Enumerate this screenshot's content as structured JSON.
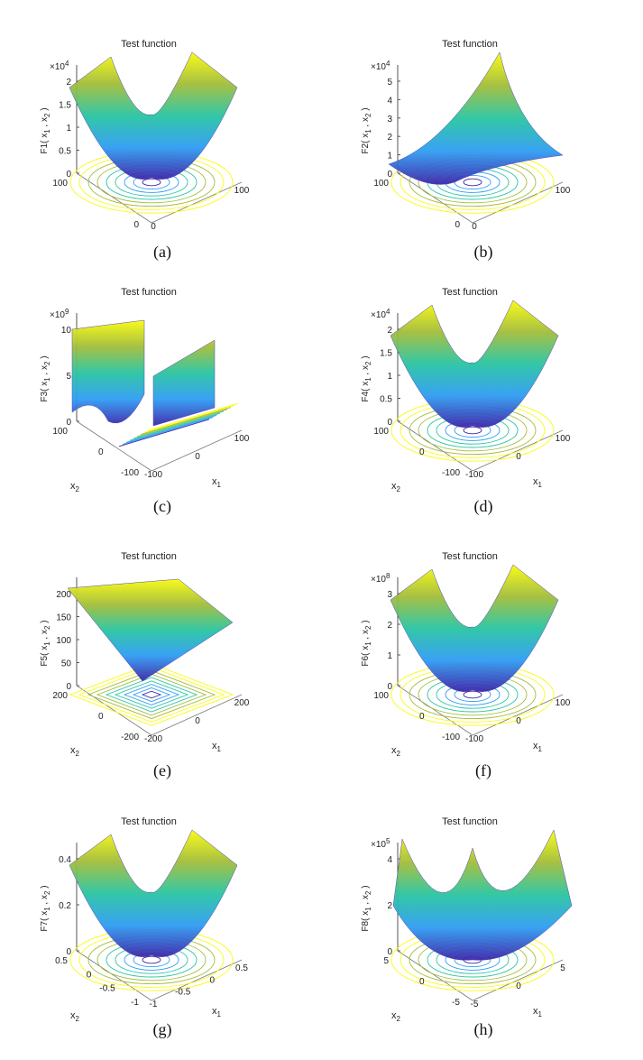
{
  "chart_data": [
    {
      "type": "surface",
      "caption": "(a)",
      "title": "Test function",
      "zlabel_main": "F1( x",
      "zlabel_s1": "1",
      "zlabel_mid": " , x",
      "zlabel_s2": "2",
      "zlabel_end": " )",
      "exp_base": "×10",
      "exp_pow": "4",
      "zticks": [
        "2",
        "1.5",
        "1",
        "0.5",
        "0"
      ],
      "zlim": [
        0,
        2
      ],
      "yticks": [
        "100",
        "0"
      ],
      "xticks": [
        "0",
        "100"
      ],
      "xlabel": "",
      "ylabel": "",
      "surface": "bowl",
      "colors": [
        "#3d26a8",
        "#2f9df4",
        "#29c5a2",
        "#a3bd3a",
        "#f9fb0e"
      ]
    },
    {
      "type": "surface",
      "caption": "(b)",
      "title": "Test function",
      "zlabel_main": "F2( x",
      "zlabel_s1": "1",
      "zlabel_mid": " , x",
      "zlabel_s2": "2",
      "zlabel_end": " )",
      "exp_base": "×10",
      "exp_pow": "4",
      "zticks": [
        "5",
        "4",
        "3",
        "2",
        "1",
        "0"
      ],
      "zlim": [
        0,
        5
      ],
      "yticks": [
        "100",
        "0"
      ],
      "xticks": [
        "0",
        "100"
      ],
      "xlabel": "",
      "ylabel": "",
      "surface": "tilted",
      "colors": [
        "#3d26a8",
        "#2f9df4",
        "#29c5a2",
        "#a3bd3a",
        "#f9fb0e"
      ]
    },
    {
      "type": "surface",
      "caption": "(c)",
      "title": "Test function",
      "zlabel_main": "F3( x",
      "zlabel_s1": "1",
      "zlabel_mid": " , x",
      "zlabel_s2": "2",
      "zlabel_end": " )",
      "exp_base": "×10",
      "exp_pow": "9",
      "zticks": [
        "10",
        "5",
        "0"
      ],
      "zlim": [
        0,
        10
      ],
      "yticks": [
        "100",
        "0",
        "-100"
      ],
      "xticks": [
        "-100",
        "0",
        "100"
      ],
      "xlabel": "x",
      "ylabel": "x",
      "surface": "valley",
      "colors": [
        "#3d26a8",
        "#2f9df4",
        "#29c5a2",
        "#a3bd3a",
        "#f9fb0e"
      ]
    },
    {
      "type": "surface",
      "caption": "(d)",
      "title": "Test function",
      "zlabel_main": "F4( x",
      "zlabel_s1": "1",
      "zlabel_mid": " , x",
      "zlabel_s2": "2",
      "zlabel_end": " )",
      "exp_base": "×10",
      "exp_pow": "4",
      "zticks": [
        "2",
        "1.5",
        "1",
        "0.5",
        "0"
      ],
      "zlim": [
        0,
        2
      ],
      "yticks": [
        "100",
        "0",
        "-100"
      ],
      "xticks": [
        "-100",
        "0",
        "100"
      ],
      "xlabel": "x",
      "ylabel": "x",
      "surface": "bowl",
      "colors": [
        "#3d26a8",
        "#2f9df4",
        "#29c5a2",
        "#a3bd3a",
        "#f9fb0e"
      ]
    },
    {
      "type": "surface",
      "caption": "(e)",
      "title": "Test function",
      "zlabel_main": "F5( x",
      "zlabel_s1": "1",
      "zlabel_mid": " , x",
      "zlabel_s2": "2",
      "zlabel_end": " )",
      "exp_base": "",
      "exp_pow": "",
      "zticks": [
        "200",
        "150",
        "100",
        "50",
        "0"
      ],
      "zlim": [
        0,
        200
      ],
      "yticks": [
        "200",
        "0",
        "-200"
      ],
      "xticks": [
        "-200",
        "0",
        "200"
      ],
      "xlabel": "x",
      "ylabel": "x",
      "surface": "pyramid",
      "colors": [
        "#3d26a8",
        "#2f9df4",
        "#29c5a2",
        "#a3bd3a",
        "#f9fb0e"
      ]
    },
    {
      "type": "surface",
      "caption": "(f)",
      "title": "Test function",
      "zlabel_main": "F6( x",
      "zlabel_s1": "1",
      "zlabel_mid": " , x",
      "zlabel_s2": "2",
      "zlabel_end": " )",
      "exp_base": "×10",
      "exp_pow": "8",
      "zticks": [
        "3",
        "2",
        "1",
        "0"
      ],
      "zlim": [
        0,
        3
      ],
      "yticks": [
        "100",
        "0",
        "-100"
      ],
      "xticks": [
        "-100",
        "0",
        "100"
      ],
      "xlabel": "x",
      "ylabel": "x",
      "surface": "bowl",
      "colors": [
        "#3d26a8",
        "#2f9df4",
        "#29c5a2",
        "#a3bd3a",
        "#f9fb0e"
      ]
    },
    {
      "type": "surface",
      "caption": "(g)",
      "title": "Test function",
      "zlabel_main": "F7( x",
      "zlabel_s1": "1",
      "zlabel_mid": " , x",
      "zlabel_s2": "2",
      "zlabel_end": " )",
      "exp_base": "",
      "exp_pow": "",
      "zticks": [
        "0.4",
        "0.2",
        "0"
      ],
      "zlim": [
        0,
        0.5
      ],
      "yticks": [
        "0.5",
        "0",
        "-0.5",
        "-1"
      ],
      "xticks": [
        "-1",
        "-0.5",
        "0",
        "0.5"
      ],
      "xlabel": "x",
      "ylabel": "x",
      "surface": "bowl",
      "colors": [
        "#3d26a8",
        "#2f9df4",
        "#29c5a2",
        "#a3bd3a",
        "#f9fb0e"
      ]
    },
    {
      "type": "surface",
      "caption": "(h)",
      "title": "Test function",
      "zlabel_main": "F8( x",
      "zlabel_s1": "1",
      "zlabel_mid": " , x",
      "zlabel_s2": "2",
      "zlabel_end": " )",
      "exp_base": "×10",
      "exp_pow": "5",
      "zticks": [
        "4",
        "2",
        "0"
      ],
      "zlim": [
        0,
        5
      ],
      "yticks": [
        "5",
        "0",
        "-5"
      ],
      "xticks": [
        "-5",
        "0",
        "5"
      ],
      "xlabel": "x",
      "ylabel": "x",
      "surface": "sharp",
      "colors": [
        "#3d26a8",
        "#2f9df4",
        "#29c5a2",
        "#a3bd3a",
        "#f9fb0e"
      ]
    }
  ]
}
